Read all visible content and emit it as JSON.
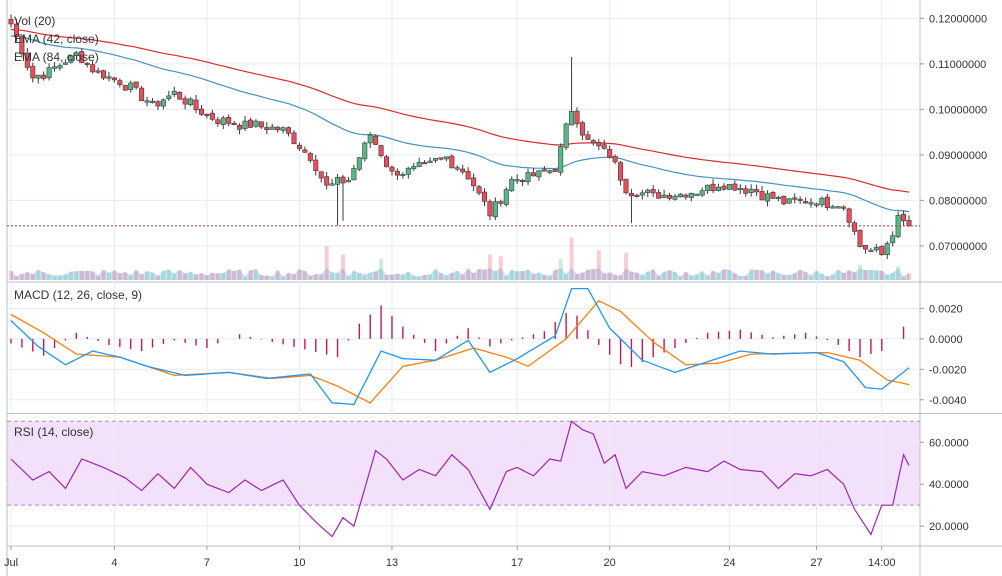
{
  "legend": {
    "vol": "Vol (20)",
    "ema42": "EMA (42, close)",
    "ema84": "EMA (84, close)",
    "macd": "MACD (12, 26, close, 9)",
    "rsi": "RSI (14, close)"
  },
  "colors": {
    "up": "#53b987",
    "down": "#eb4d5c",
    "ema42": "#4a90c2",
    "ema84": "#d62c2c",
    "macd_line": "#2196f3",
    "signal_line": "#ff7f0e",
    "histogram": "#c2185b",
    "rsi_line": "#9c27b0",
    "rsi_band": "#f3e0fb",
    "last_price_line": "#c0392b",
    "grid": "#e8ecef"
  },
  "chart_data": [
    {
      "type": "candlestick",
      "title": "",
      "overlays": [
        "EMA (42, close)",
        "EMA (84, close)"
      ],
      "ylim": [
        0.0625,
        0.1225
      ],
      "y_ticks": [
        "0.12000000",
        "0.11000000",
        "0.10000000",
        "0.09000000",
        "0.08000000",
        "0.07000000"
      ],
      "y_tick_values": [
        0.12,
        0.11,
        0.1,
        0.09,
        0.08,
        0.07
      ],
      "last_price": 0.0744,
      "grid": true,
      "ohlc_anchors": [
        {
          "t": 0,
          "c": 0.1188
        },
        {
          "t": 4,
          "c": 0.107
        },
        {
          "t": 7,
          "c": 0.1085
        },
        {
          "t": 12,
          "c": 0.112
        },
        {
          "t": 16,
          "c": 0.108
        },
        {
          "t": 22,
          "c": 0.105
        },
        {
          "t": 26,
          "c": 0.101
        },
        {
          "t": 30,
          "c": 0.1035
        },
        {
          "t": 34,
          "c": 0.1
        },
        {
          "t": 38,
          "c": 0.0975
        },
        {
          "t": 44,
          "c": 0.0965
        },
        {
          "t": 50,
          "c": 0.0955
        },
        {
          "t": 55,
          "c": 0.0895
        },
        {
          "t": 58,
          "c": 0.083
        },
        {
          "t": 62,
          "c": 0.0845
        },
        {
          "t": 66,
          "c": 0.0945
        },
        {
          "t": 70,
          "c": 0.086
        },
        {
          "t": 75,
          "c": 0.087
        },
        {
          "t": 80,
          "c": 0.0895
        },
        {
          "t": 84,
          "c": 0.0855
        },
        {
          "t": 88,
          "c": 0.077
        },
        {
          "t": 92,
          "c": 0.0845
        },
        {
          "t": 96,
          "c": 0.0855
        },
        {
          "t": 100,
          "c": 0.087
        },
        {
          "t": 103,
          "c": 0.1
        },
        {
          "t": 106,
          "c": 0.093
        },
        {
          "t": 110,
          "c": 0.09
        },
        {
          "t": 113,
          "c": 0.0825
        },
        {
          "t": 118,
          "c": 0.081
        },
        {
          "t": 124,
          "c": 0.0815
        },
        {
          "t": 130,
          "c": 0.0835
        },
        {
          "t": 136,
          "c": 0.0825
        },
        {
          "t": 142,
          "c": 0.0795
        },
        {
          "t": 148,
          "c": 0.08
        },
        {
          "t": 153,
          "c": 0.079
        },
        {
          "t": 156,
          "c": 0.07
        },
        {
          "t": 160,
          "c": 0.068
        },
        {
          "t": 163,
          "c": 0.076
        },
        {
          "t": 165,
          "c": 0.0744
        }
      ],
      "spikes": [
        {
          "t": 60,
          "low": 0.0745
        },
        {
          "t": 61,
          "low": 0.0755
        },
        {
          "t": 103,
          "high": 0.1115
        },
        {
          "t": 114,
          "low": 0.075
        }
      ],
      "volume": {
        "name": "Vol (20)",
        "baseline": 1.0,
        "spikes": [
          {
            "t": 58,
            "v": 4.0,
            "dir": "down"
          },
          {
            "t": 61,
            "v": 3.0,
            "dir": "down"
          },
          {
            "t": 68,
            "v": 2.5,
            "dir": "up"
          },
          {
            "t": 88,
            "v": 3.0,
            "dir": "down"
          },
          {
            "t": 90,
            "v": 2.8,
            "dir": "down"
          },
          {
            "t": 101,
            "v": 2.5,
            "dir": "up"
          },
          {
            "t": 103,
            "v": 5.0,
            "dir": "down"
          },
          {
            "t": 108,
            "v": 3.5,
            "dir": "down"
          },
          {
            "t": 113,
            "v": 3.2,
            "dir": "down"
          },
          {
            "t": 156,
            "v": 1.8,
            "dir": "up"
          },
          {
            "t": 163,
            "v": 1.6,
            "dir": "up"
          }
        ]
      }
    },
    {
      "type": "line",
      "title": "MACD (12, 26, close, 9)",
      "ylim": [
        -0.0048,
        0.0036
      ],
      "y_ticks": [
        "0.0020",
        "0.0000",
        "-0.0020",
        "-0.0040"
      ],
      "y_tick_values": [
        0.002,
        0.0,
        -0.002,
        -0.004
      ],
      "series": [
        {
          "name": "MACD",
          "points": [
            {
              "t": 0,
              "v": 0.0012
            },
            {
              "t": 5,
              "v": -0.0005
            },
            {
              "t": 10,
              "v": -0.0017
            },
            {
              "t": 15,
              "v": -0.0008
            },
            {
              "t": 20,
              "v": -0.0012
            },
            {
              "t": 25,
              "v": -0.0018
            },
            {
              "t": 32,
              "v": -0.0024
            },
            {
              "t": 40,
              "v": -0.0022
            },
            {
              "t": 47,
              "v": -0.0026
            },
            {
              "t": 55,
              "v": -0.0023
            },
            {
              "t": 59,
              "v": -0.0042
            },
            {
              "t": 63,
              "v": -0.0043
            },
            {
              "t": 68,
              "v": -0.0008
            },
            {
              "t": 72,
              "v": -0.0013
            },
            {
              "t": 78,
              "v": -0.0014
            },
            {
              "t": 84,
              "v": -0.0001
            },
            {
              "t": 88,
              "v": -0.0022
            },
            {
              "t": 93,
              "v": -0.0013
            },
            {
              "t": 100,
              "v": 0.0002
            },
            {
              "t": 103,
              "v": 0.0033
            },
            {
              "t": 106,
              "v": 0.0033
            },
            {
              "t": 110,
              "v": 0.0007
            },
            {
              "t": 116,
              "v": -0.0014
            },
            {
              "t": 122,
              "v": -0.0022
            },
            {
              "t": 128,
              "v": -0.0015
            },
            {
              "t": 134,
              "v": -0.0008
            },
            {
              "t": 140,
              "v": -0.001
            },
            {
              "t": 148,
              "v": -0.0009
            },
            {
              "t": 153,
              "v": -0.0015
            },
            {
              "t": 157,
              "v": -0.0032
            },
            {
              "t": 160,
              "v": -0.0033
            },
            {
              "t": 165,
              "v": -0.0019
            }
          ]
        },
        {
          "name": "Signal",
          "points": [
            {
              "t": 0,
              "v": 0.0016
            },
            {
              "t": 6,
              "v": 0.0004
            },
            {
              "t": 12,
              "v": -0.001
            },
            {
              "t": 20,
              "v": -0.0012
            },
            {
              "t": 30,
              "v": -0.0024
            },
            {
              "t": 40,
              "v": -0.0022
            },
            {
              "t": 48,
              "v": -0.0026
            },
            {
              "t": 55,
              "v": -0.0024
            },
            {
              "t": 60,
              "v": -0.0031
            },
            {
              "t": 66,
              "v": -0.0042
            },
            {
              "t": 72,
              "v": -0.0018
            },
            {
              "t": 78,
              "v": -0.0014
            },
            {
              "t": 85,
              "v": -0.0006
            },
            {
              "t": 91,
              "v": -0.0012
            },
            {
              "t": 95,
              "v": -0.0018
            },
            {
              "t": 102,
              "v": 0.0
            },
            {
              "t": 108,
              "v": 0.0025
            },
            {
              "t": 112,
              "v": 0.0018
            },
            {
              "t": 118,
              "v": -0.0002
            },
            {
              "t": 124,
              "v": -0.0017
            },
            {
              "t": 130,
              "v": -0.0016
            },
            {
              "t": 136,
              "v": -0.001
            },
            {
              "t": 150,
              "v": -0.0009
            },
            {
              "t": 156,
              "v": -0.0014
            },
            {
              "t": 161,
              "v": -0.0027
            },
            {
              "t": 165,
              "v": -0.003
            }
          ]
        }
      ],
      "histogram_envelope": [
        {
          "t": 0,
          "v": -0.0003
        },
        {
          "t": 6,
          "v": -0.0011
        },
        {
          "t": 12,
          "v": 0.0004
        },
        {
          "t": 18,
          "v": -0.0004
        },
        {
          "t": 24,
          "v": -0.0008
        },
        {
          "t": 30,
          "v": -0.0001
        },
        {
          "t": 36,
          "v": -0.0006
        },
        {
          "t": 42,
          "v": 0.0003
        },
        {
          "t": 48,
          "v": -0.0002
        },
        {
          "t": 54,
          "v": -0.0007
        },
        {
          "t": 60,
          "v": -0.0012
        },
        {
          "t": 64,
          "v": 0.001
        },
        {
          "t": 68,
          "v": 0.0022
        },
        {
          "t": 72,
          "v": 0.0008
        },
        {
          "t": 78,
          "v": -0.0008
        },
        {
          "t": 84,
          "v": 0.0007
        },
        {
          "t": 88,
          "v": -0.0005
        },
        {
          "t": 92,
          "v": -0.0001
        },
        {
          "t": 98,
          "v": 0.0005
        },
        {
          "t": 103,
          "v": 0.002
        },
        {
          "t": 108,
          "v": -0.0004
        },
        {
          "t": 113,
          "v": -0.002
        },
        {
          "t": 118,
          "v": -0.0012
        },
        {
          "t": 122,
          "v": -0.0006
        },
        {
          "t": 128,
          "v": 0.0004
        },
        {
          "t": 134,
          "v": 0.0006
        },
        {
          "t": 140,
          "v": 0.0001
        },
        {
          "t": 146,
          "v": 0.0004
        },
        {
          "t": 151,
          "v": -0.0002
        },
        {
          "t": 156,
          "v": -0.0012
        },
        {
          "t": 160,
          "v": -0.0008
        },
        {
          "t": 165,
          "v": 0.0012
        }
      ]
    },
    {
      "type": "line",
      "title": "RSI (14, close)",
      "ylim": [
        11,
        73
      ],
      "band": [
        30,
        70
      ],
      "y_ticks": [
        "60.0000",
        "40.0000",
        "20.0000"
      ],
      "y_tick_values": [
        60,
        40,
        20
      ],
      "series": [
        {
          "name": "RSI",
          "points": [
            {
              "t": 0,
              "v": 52
            },
            {
              "t": 4,
              "v": 42
            },
            {
              "t": 7,
              "v": 46
            },
            {
              "t": 10,
              "v": 38
            },
            {
              "t": 13,
              "v": 52
            },
            {
              "t": 17,
              "v": 48
            },
            {
              "t": 21,
              "v": 43
            },
            {
              "t": 24,
              "v": 37
            },
            {
              "t": 27,
              "v": 45
            },
            {
              "t": 30,
              "v": 38
            },
            {
              "t": 33,
              "v": 48
            },
            {
              "t": 36,
              "v": 40
            },
            {
              "t": 40,
              "v": 36
            },
            {
              "t": 43,
              "v": 42
            },
            {
              "t": 46,
              "v": 37
            },
            {
              "t": 50,
              "v": 42
            },
            {
              "t": 53,
              "v": 30
            },
            {
              "t": 56,
              "v": 22
            },
            {
              "t": 59,
              "v": 15
            },
            {
              "t": 61,
              "v": 24
            },
            {
              "t": 63,
              "v": 20
            },
            {
              "t": 65,
              "v": 38
            },
            {
              "t": 67,
              "v": 56
            },
            {
              "t": 69,
              "v": 52
            },
            {
              "t": 72,
              "v": 42
            },
            {
              "t": 75,
              "v": 47
            },
            {
              "t": 78,
              "v": 44
            },
            {
              "t": 81,
              "v": 54
            },
            {
              "t": 84,
              "v": 47
            },
            {
              "t": 88,
              "v": 28
            },
            {
              "t": 91,
              "v": 46
            },
            {
              "t": 93,
              "v": 48
            },
            {
              "t": 96,
              "v": 44
            },
            {
              "t": 99,
              "v": 52
            },
            {
              "t": 101,
              "v": 51
            },
            {
              "t": 103,
              "v": 70
            },
            {
              "t": 105,
              "v": 66
            },
            {
              "t": 107,
              "v": 64
            },
            {
              "t": 109,
              "v": 50
            },
            {
              "t": 111,
              "v": 54
            },
            {
              "t": 113,
              "v": 38
            },
            {
              "t": 116,
              "v": 46
            },
            {
              "t": 120,
              "v": 44
            },
            {
              "t": 124,
              "v": 48
            },
            {
              "t": 128,
              "v": 46
            },
            {
              "t": 131,
              "v": 51
            },
            {
              "t": 134,
              "v": 47
            },
            {
              "t": 138,
              "v": 46
            },
            {
              "t": 141,
              "v": 38
            },
            {
              "t": 144,
              "v": 45
            },
            {
              "t": 147,
              "v": 44
            },
            {
              "t": 150,
              "v": 47
            },
            {
              "t": 153,
              "v": 40
            },
            {
              "t": 155,
              "v": 28
            },
            {
              "t": 158,
              "v": 16
            },
            {
              "t": 160,
              "v": 30
            },
            {
              "t": 162,
              "v": 30
            },
            {
              "t": 164,
              "v": 54
            },
            {
              "t": 165,
              "v": 49
            }
          ]
        }
      ]
    }
  ],
  "x_axis": {
    "labels": [
      "Jul",
      "4",
      "7",
      "10",
      "13",
      "17",
      "20",
      "24",
      "27",
      "14:00"
    ],
    "label_t": [
      0,
      19,
      36,
      53,
      70,
      93,
      110,
      132,
      148,
      160
    ]
  }
}
